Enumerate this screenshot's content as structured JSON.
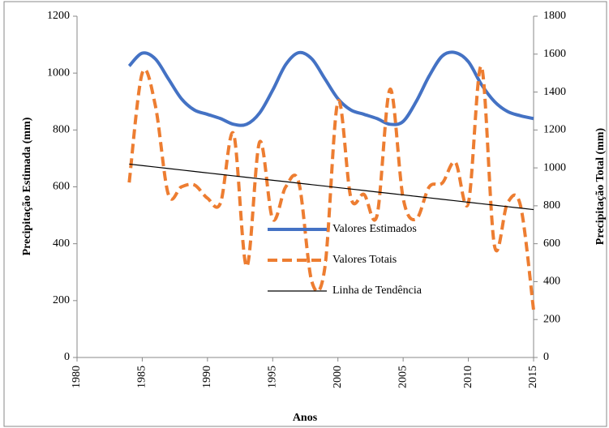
{
  "chart_data": {
    "type": "line",
    "x": [
      1984,
      1985,
      1986,
      1987,
      1988,
      1989,
      1990,
      1991,
      1992,
      1993,
      1994,
      1995,
      1996,
      1997,
      1998,
      1999,
      2000,
      2001,
      2002,
      2003,
      2004,
      2005,
      2006,
      2007,
      2008,
      2009,
      2010,
      2011,
      2012,
      2013,
      2014,
      2015
    ],
    "series": [
      {
        "name": "Valores Estimados",
        "color": "#4472c4",
        "dash": "solid",
        "width": 4,
        "smooth": true,
        "axis": "y",
        "values": [
          1025,
          1070,
          1050,
          980,
          910,
          870,
          855,
          840,
          820,
          820,
          860,
          940,
          1030,
          1072,
          1050,
          980,
          910,
          870,
          855,
          840,
          820,
          830,
          900,
          990,
          1060,
          1072,
          1040,
          960,
          900,
          865,
          850,
          840
        ]
      },
      {
        "name": "Valores Totais",
        "color": "#ed7d31",
        "dash": "dashed",
        "width": 4,
        "smooth": true,
        "axis": "y2",
        "values": [
          923,
          1500,
          1330,
          860,
          900,
          910,
          840,
          815,
          1180,
          480,
          1137,
          730,
          900,
          923,
          400,
          475,
          1350,
          840,
          860,
          750,
          1415,
          840,
          730,
          900,
          920,
          1030,
          815,
          1535,
          590,
          815,
          800,
          250
        ]
      },
      {
        "name": "Linha de Tendência",
        "color": "#000000",
        "dash": "solid",
        "width": 1.2,
        "smooth": false,
        "axis": "y",
        "values": [
          680,
          674.8,
          669.7,
          664.5,
          659.4,
          654.2,
          649,
          643.9,
          638.7,
          633.5,
          628.4,
          623.2,
          618.1,
          612.9,
          607.7,
          602.6,
          597.4,
          592.3,
          587.1,
          581.9,
          576.8,
          571.6,
          566.5,
          561.3,
          556.1,
          551,
          545.8,
          540.6,
          535.5,
          530.3,
          525.2,
          520
        ]
      }
    ],
    "xlabel": "Anos",
    "ylabel": "Precipitação Estimada (mm)",
    "y2label": "Precipitação Total (mm)",
    "xlim": [
      1980,
      2015
    ],
    "xticks": [
      1980,
      1985,
      1990,
      1995,
      2000,
      2005,
      2010,
      2015
    ],
    "ylim": [
      0,
      1200
    ],
    "yticks": [
      0,
      200,
      400,
      600,
      800,
      1000,
      1200
    ],
    "y2lim": [
      0,
      1800
    ],
    "y2ticks": [
      0,
      200,
      400,
      600,
      800,
      1000,
      1200,
      1400,
      1600,
      1800
    ]
  }
}
